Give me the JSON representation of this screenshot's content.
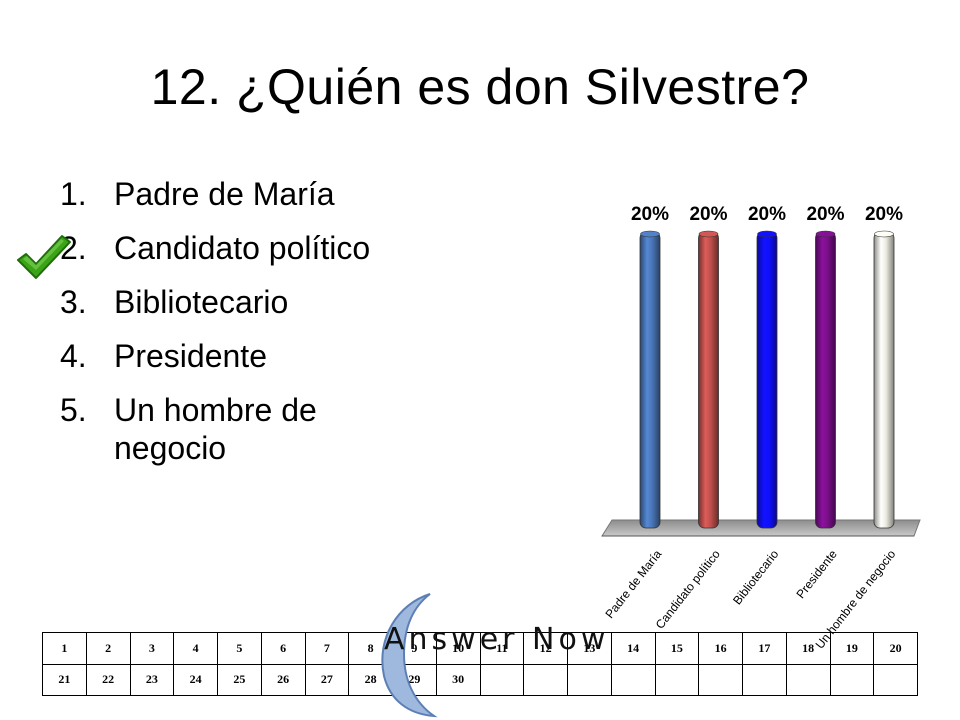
{
  "title": "12. ¿Quién es don Silvestre?",
  "answers": [
    {
      "num": "1.",
      "text": "Padre de María"
    },
    {
      "num": "2.",
      "text": "Candidato político"
    },
    {
      "num": "3.",
      "text": "Bibliotecario"
    },
    {
      "num": "4.",
      "text": "Presidente"
    },
    {
      "num": "5.",
      "text": "Un hombre de negocio"
    }
  ],
  "correct_answer_icon": "green-checkmark-icon",
  "colors": {
    "check": "#3aa316",
    "floor": "#b3b3b3",
    "logo_moon": "#9fb8dd"
  },
  "chart_data": {
    "type": "bar",
    "categories": [
      "Padre de María",
      "Candidato político",
      "Bibliotecario",
      "Presidente",
      "Un hombre de negocio"
    ],
    "values": [
      20,
      20,
      20,
      20,
      20
    ],
    "value_labels": [
      "20%",
      "20%",
      "20%",
      "20%",
      "20%"
    ],
    "colors": [
      "#4a76b8",
      "#c0504d",
      "#1010ff",
      "#7a0f8a",
      "#ecebe0"
    ],
    "ylim": [
      0,
      20
    ],
    "grid": false,
    "legend": "none"
  },
  "logo": {
    "text": "Answer Now"
  },
  "grid": {
    "rows": [
      [
        "1",
        "2",
        "3",
        "4",
        "5",
        "6",
        "7",
        "8",
        "9",
        "10",
        "11",
        "12",
        "13",
        "14",
        "15",
        "16",
        "17",
        "18",
        "19",
        "20"
      ],
      [
        "21",
        "22",
        "23",
        "24",
        "25",
        "26",
        "27",
        "28",
        "29",
        "30",
        "",
        "",
        "",
        "",
        "",
        "",
        "",
        "",
        "",
        ""
      ]
    ]
  }
}
